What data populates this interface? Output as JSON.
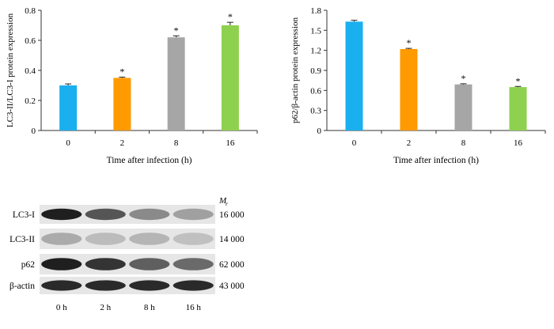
{
  "chart_data": [
    {
      "type": "bar",
      "title": "",
      "xlabel": "Time after infection (h)",
      "ylabel": "LC3-II/LC3-I protein expression",
      "ylim": [
        0,
        0.8
      ],
      "yticks": [
        "0",
        "0.2",
        "0.4",
        "0.6",
        "0.8"
      ],
      "categories": [
        "0",
        "2",
        "8",
        "16"
      ],
      "values": [
        0.3,
        0.35,
        0.62,
        0.7
      ],
      "errors": [
        0.01,
        0.005,
        0.01,
        0.02
      ],
      "significance": [
        "",
        "*",
        "*",
        "*"
      ],
      "colors": [
        "#1ab0ef",
        "#ff9a00",
        "#a6a6a6",
        "#8ed14e"
      ],
      "grid": false
    },
    {
      "type": "bar",
      "title": "",
      "xlabel": "Time after infection (h)",
      "ylabel": "p62/β-actin protein expression",
      "ylim": [
        0,
        1.8
      ],
      "yticks": [
        "0",
        "0.3",
        "0.6",
        "0.9",
        "1.2",
        "1.5",
        "1.8"
      ],
      "categories": [
        "0",
        "2",
        "8",
        "16"
      ],
      "values": [
        1.63,
        1.22,
        0.69,
        0.65
      ],
      "errors": [
        0.02,
        0.01,
        0.01,
        0.01
      ],
      "significance": [
        "",
        "*",
        "*",
        "*"
      ],
      "colors": [
        "#1ab0ef",
        "#ff9a00",
        "#a6a6a6",
        "#8ed14e"
      ],
      "grid": false
    }
  ],
  "blot": {
    "mr_label": "M",
    "mr_sub": "r",
    "rows": [
      {
        "name": "LC3-I",
        "mr": "16 000",
        "intensity": [
          0.95,
          0.7,
          0.45,
          0.35
        ]
      },
      {
        "name": "LC3-II",
        "mr": "14 000",
        "intensity": [
          0.3,
          0.22,
          0.25,
          0.2
        ]
      },
      {
        "name": "p62",
        "mr": "62 000",
        "intensity": [
          0.95,
          0.85,
          0.65,
          0.6
        ]
      },
      {
        "name": "β-actin",
        "mr": "43 000",
        "intensity": [
          0.9,
          0.9,
          0.9,
          0.9
        ]
      }
    ],
    "lanes": [
      "0 h",
      "2 h",
      "8 h",
      "16 h"
    ]
  }
}
